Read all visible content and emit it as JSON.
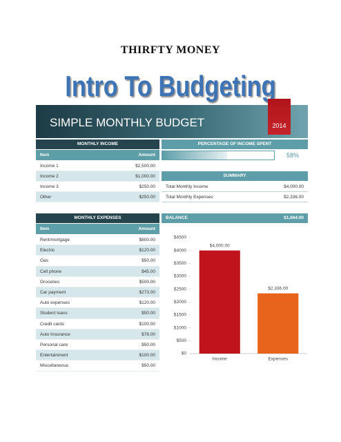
{
  "header": {
    "brand": "THIRFTY MONEY",
    "title": "Intro To Budgeting"
  },
  "banner": {
    "title": "SIMPLE MONTHLY BUDGET",
    "year": "2014"
  },
  "income": {
    "title": "MONTHLY INCOME",
    "columns": [
      "Item",
      "Amount"
    ],
    "rows": [
      [
        "Income 1",
        "$2,500.00"
      ],
      [
        "Income 2",
        "$1,000.00"
      ],
      [
        "Income 3",
        "$250.00"
      ],
      [
        "Other",
        "$250.00"
      ]
    ]
  },
  "percentage": {
    "title": "PERCENTAGE OF INCOME SPENT",
    "value": 58,
    "value_label": "58%"
  },
  "summary": {
    "title": "SUMMARY",
    "rows": [
      [
        "Total Monthly Income",
        "$4,000.00"
      ],
      [
        "Total Monthly Expenses",
        "$2,336.00"
      ]
    ]
  },
  "expenses": {
    "title": "MONTHLY EXPENSES",
    "columns": [
      "Item",
      "Amount"
    ],
    "rows": [
      [
        "Rent/mortgage",
        "$800.00"
      ],
      [
        "Electric",
        "$120.00"
      ],
      [
        "Gas",
        "$50.00"
      ],
      [
        "Cell phone",
        "$45.00"
      ],
      [
        "Groceries",
        "$500.00"
      ],
      [
        "Car payment",
        "$273.00"
      ],
      [
        "Auto expenses",
        "$120.00"
      ],
      [
        "Student loans",
        "$50.00"
      ],
      [
        "Credit cards",
        "$100.00"
      ],
      [
        "Auto Insurance",
        "$78.00"
      ],
      [
        "Personal care",
        "$50.00"
      ],
      [
        "Entertainment",
        "$100.00"
      ],
      [
        "Miscellaneous",
        "$50.00"
      ]
    ]
  },
  "balance": {
    "title": "BALANCE",
    "amount": "$1,664.00"
  },
  "chart_data": {
    "type": "bar",
    "categories": [
      "Income",
      "Expenses"
    ],
    "values": [
      4000,
      2336
    ],
    "value_labels": [
      "$4,000.00",
      "$2,336.00"
    ],
    "colors": [
      "#c0141c",
      "#e8641b"
    ],
    "ylim": [
      0,
      4500
    ],
    "yticks": [
      {
        "value": 0,
        "label": "$0"
      },
      {
        "value": 500,
        "label": "$500"
      },
      {
        "value": 1000,
        "label": "$1000"
      },
      {
        "value": 1500,
        "label": "$1500"
      },
      {
        "value": 2000,
        "label": "$2000"
      },
      {
        "value": 2500,
        "label": "$2500"
      },
      {
        "value": 3000,
        "label": "$3000"
      },
      {
        "value": 3500,
        "label": "$3500"
      },
      {
        "value": 4000,
        "label": "$4000"
      },
      {
        "value": 4500,
        "label": "$4500"
      }
    ]
  }
}
